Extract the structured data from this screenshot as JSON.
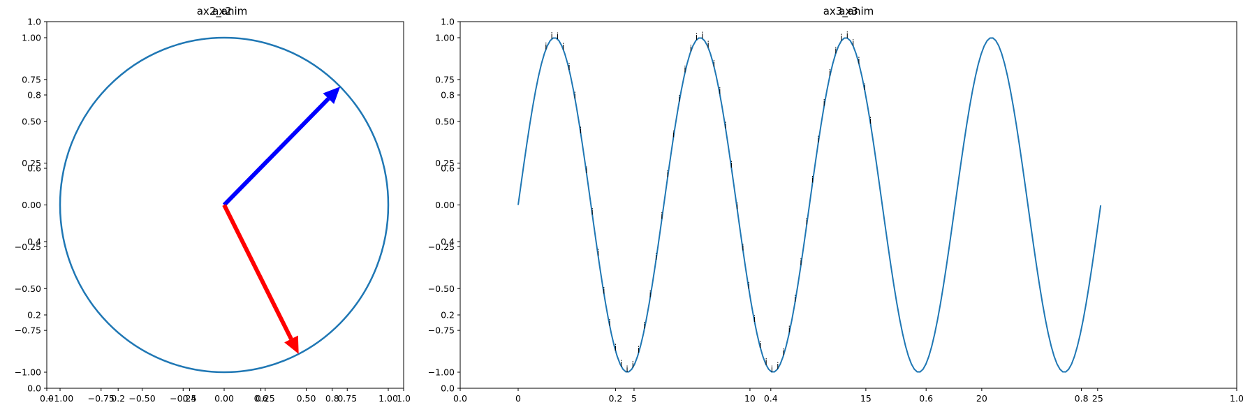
{
  "chart_data": [
    {
      "type": "line",
      "title": "ax2_anim",
      "overlay_title": "ax2",
      "xlim": [
        -1.0,
        1.0
      ],
      "ylim": [
        -1.0,
        1.0
      ],
      "circle": {
        "radius": 1.0,
        "color": "#1f77b4"
      },
      "arrows": [
        {
          "name": "blue",
          "color": "#0000ff",
          "dx": 0.707,
          "dy": 0.707
        },
        {
          "name": "red",
          "color": "#ff0000",
          "dx": 0.454,
          "dy": -0.891
        }
      ],
      "x_ticks": [
        "−1.00",
        "−0.75",
        "−0.50",
        "−0.25",
        "0.00",
        "0.25",
        "0.50",
        "0.75",
        "1.00"
      ],
      "x_tick_values": [
        -1.0,
        -0.75,
        -0.5,
        -0.25,
        0.0,
        0.25,
        0.5,
        0.75,
        1.0
      ],
      "y_ticks": [
        "−1.00",
        "−0.75",
        "−0.50",
        "−0.25",
        "0.00",
        "0.25",
        "0.50",
        "0.75",
        "1.00"
      ],
      "y_tick_values": [
        -1.0,
        -0.75,
        -0.5,
        -0.25,
        0.0,
        0.25,
        0.5,
        0.75,
        1.0
      ],
      "frame_x_ticks": [
        "0.0",
        "0.2",
        "0.4",
        "0.6",
        "0.8",
        "1.0"
      ],
      "frame_y_ticks": [
        "0.0",
        "0.2",
        "0.4",
        "0.6",
        "0.8",
        "1.0"
      ]
    },
    {
      "type": "line",
      "title": "ax3_anim",
      "overlay_title": "ax3",
      "xlim": [
        -2.5,
        31.0
      ],
      "ylim": [
        -1.0,
        1.0
      ],
      "series": [
        {
          "color": "#1f77b4",
          "function": "sin(x)",
          "x_range": [
            0,
            25.13
          ],
          "samples": 200
        }
      ],
      "marker_label": "i",
      "marker_x_range": [
        1.2,
        15.2
      ],
      "marker_step": 0.25,
      "x_ticks": [
        "0",
        "5",
        "10",
        "15",
        "20",
        "25"
      ],
      "x_tick_values": [
        0,
        5,
        10,
        15,
        20,
        25
      ],
      "y_ticks": [
        "−1.00",
        "−0.75",
        "−0.50",
        "−0.25",
        "0.00",
        "0.25",
        "0.50",
        "0.75",
        "1.00"
      ],
      "y_tick_values": [
        -1.0,
        -0.75,
        -0.5,
        -0.25,
        0.0,
        0.25,
        0.5,
        0.75,
        1.0
      ],
      "frame_x_ticks": [
        "0.0",
        "0.2",
        "0.4",
        "0.6",
        "0.8",
        "1.0"
      ],
      "frame_y_ticks": [
        "0.0",
        "0.2",
        "0.4",
        "0.6",
        "0.8",
        "1.0"
      ]
    }
  ]
}
